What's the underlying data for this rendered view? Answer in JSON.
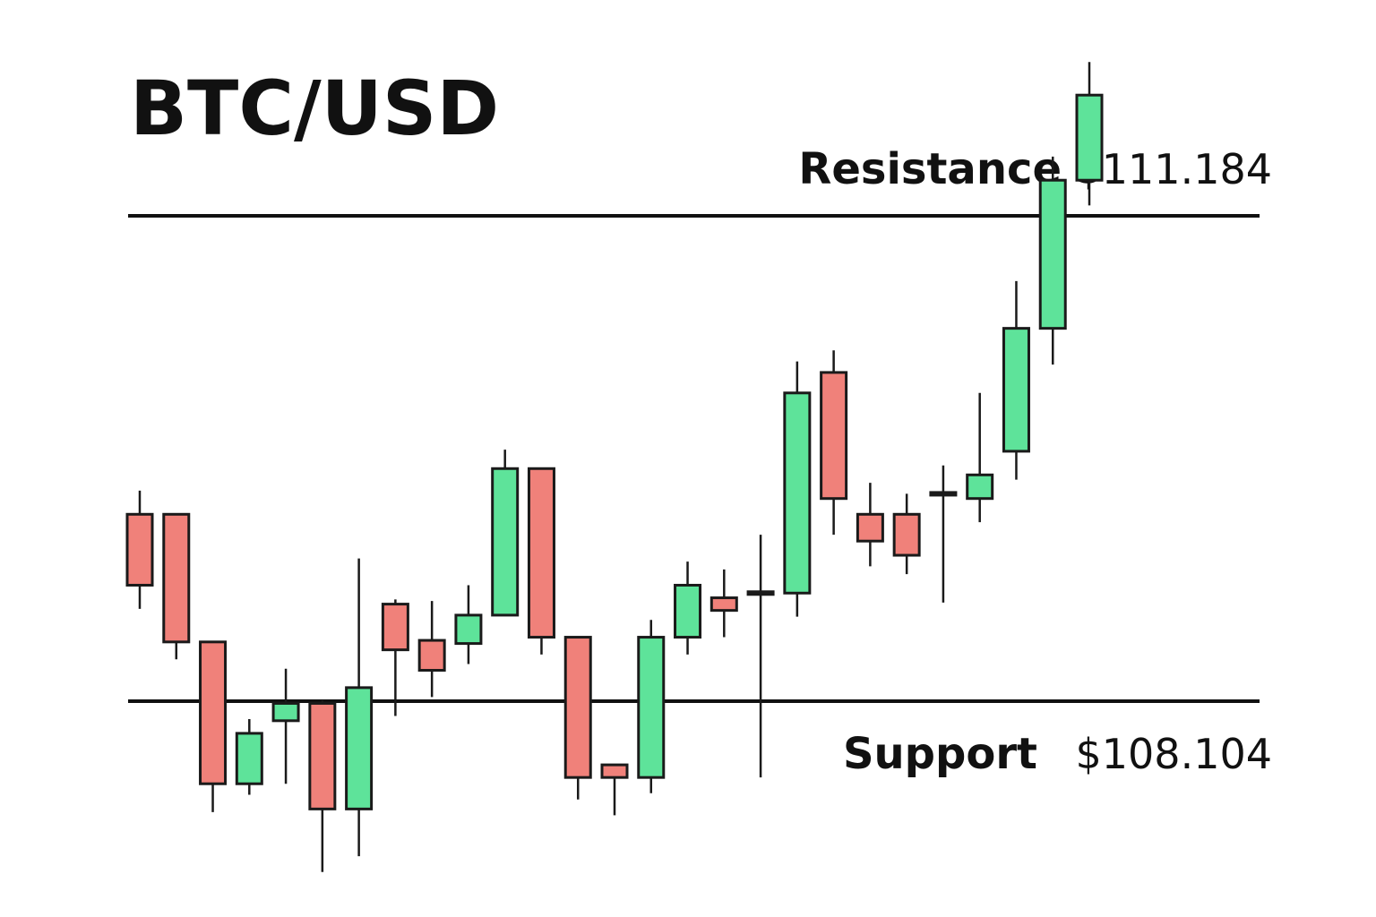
{
  "chart_data": {
    "type": "candlestick",
    "title": "BTC/USD",
    "colors": {
      "up": "#5ee39a",
      "down": "#f0817a",
      "line": "#111111"
    },
    "levels": {
      "resistance": {
        "label": "Resistance",
        "value_text": "$111.184",
        "value": 111.184
      },
      "support": {
        "label": "Support",
        "value_text": "$108.104",
        "value": 108.104
      }
    },
    "candles": [
      {
        "open": 109.29,
        "close": 108.84,
        "high": 109.44,
        "low": 108.69
      },
      {
        "open": 109.29,
        "close": 108.48,
        "high": 109.29,
        "low": 108.37
      },
      {
        "open": 108.48,
        "close": 107.58,
        "high": 108.48,
        "low": 107.4
      },
      {
        "open": 107.58,
        "close": 107.9,
        "high": 107.99,
        "low": 107.51
      },
      {
        "open": 107.98,
        "close": 108.09,
        "high": 108.31,
        "low": 107.58
      },
      {
        "open": 108.09,
        "close": 107.42,
        "high": 108.11,
        "low": 107.02
      },
      {
        "open": 107.42,
        "close": 108.19,
        "high": 109.01,
        "low": 107.12
      },
      {
        "open": 108.72,
        "close": 108.43,
        "high": 108.75,
        "low": 108.01
      },
      {
        "open": 108.49,
        "close": 108.3,
        "high": 108.74,
        "low": 108.13
      },
      {
        "open": 108.47,
        "close": 108.65,
        "high": 108.84,
        "low": 108.34
      },
      {
        "open": 108.65,
        "close": 109.58,
        "high": 109.7,
        "low": 108.65
      },
      {
        "open": 109.58,
        "close": 108.51,
        "high": 109.58,
        "low": 108.4
      },
      {
        "open": 108.51,
        "close": 107.62,
        "high": 108.51,
        "low": 107.48
      },
      {
        "open": 107.7,
        "close": 107.62,
        "high": 107.7,
        "low": 107.38
      },
      {
        "open": 107.62,
        "close": 108.51,
        "high": 108.62,
        "low": 107.52
      },
      {
        "open": 108.51,
        "close": 108.84,
        "high": 108.99,
        "low": 108.4
      },
      {
        "open": 108.76,
        "close": 108.68,
        "high": 108.94,
        "low": 108.51
      },
      {
        "open": 108.79,
        "close": 108.79,
        "high": 109.16,
        "low": 107.62
      },
      {
        "open": 108.79,
        "close": 110.06,
        "high": 110.26,
        "low": 108.64
      },
      {
        "open": 110.19,
        "close": 109.39,
        "high": 110.33,
        "low": 109.16
      },
      {
        "open": 109.29,
        "close": 109.12,
        "high": 109.49,
        "low": 108.96
      },
      {
        "open": 109.29,
        "close": 109.03,
        "high": 109.42,
        "low": 108.91
      },
      {
        "open": 109.42,
        "close": 109.42,
        "high": 109.6,
        "low": 108.73
      },
      {
        "open": 109.39,
        "close": 109.54,
        "high": 110.06,
        "low": 109.24
      },
      {
        "open": 109.69,
        "close": 110.47,
        "high": 110.77,
        "low": 109.51
      },
      {
        "open": 110.47,
        "close": 111.41,
        "high": 111.56,
        "low": 110.24
      },
      {
        "open": 111.41,
        "close": 111.95,
        "high": 112.16,
        "low": 111.25
      }
    ]
  }
}
